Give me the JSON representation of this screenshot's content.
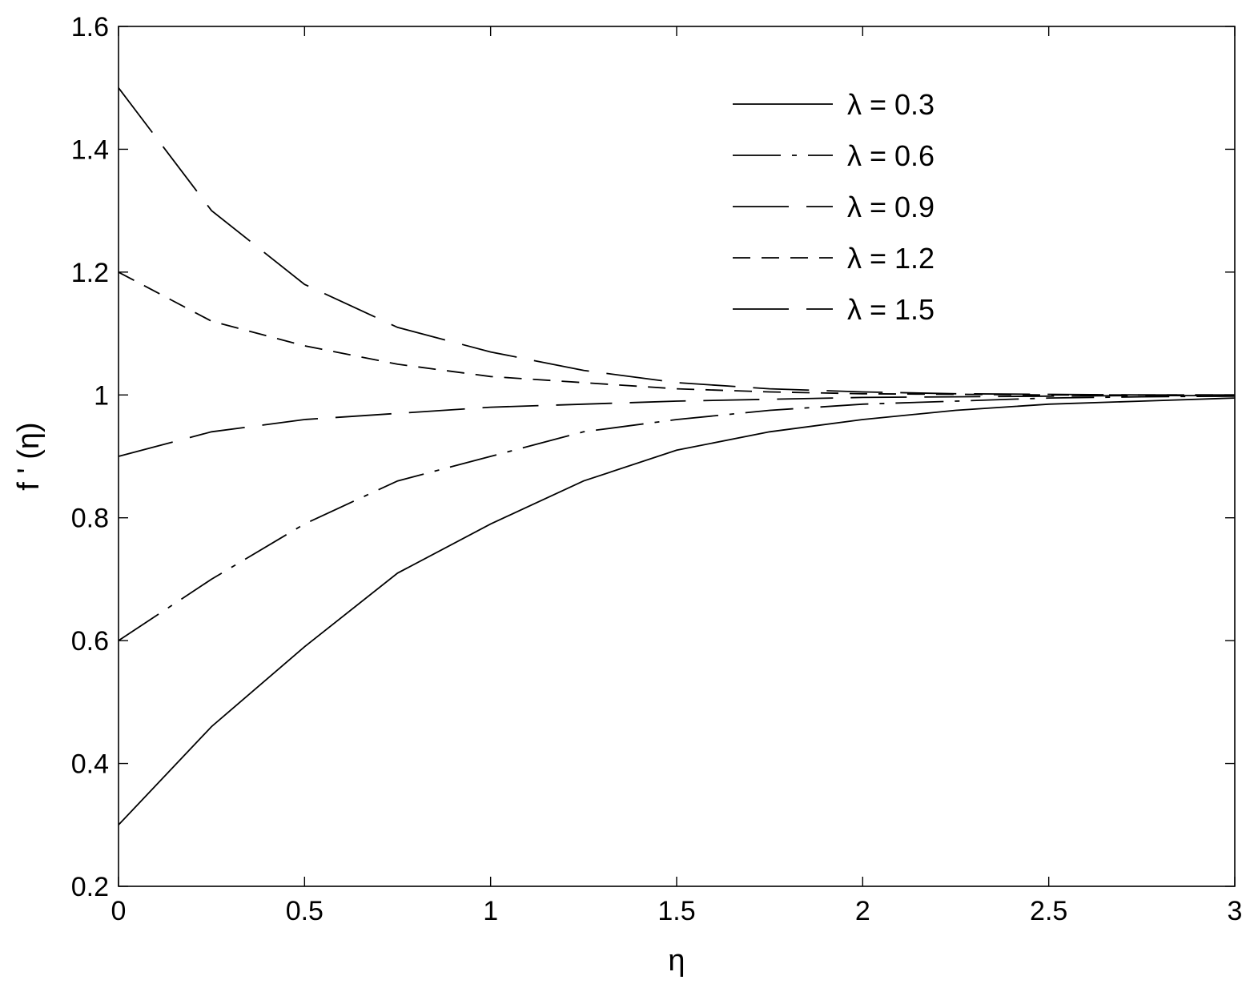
{
  "chart_data": {
    "type": "line",
    "title": "",
    "xlabel": "η",
    "ylabel": "f ' (η)",
    "xlim": [
      0,
      3
    ],
    "ylim": [
      0.2,
      1.6
    ],
    "xticks": [
      0,
      0.5,
      1,
      1.5,
      2,
      2.5,
      3
    ],
    "xtick_labels": [
      "0",
      "0.5",
      "1",
      "1.5",
      "2",
      "2.5",
      "3"
    ],
    "yticks": [
      0.2,
      0.4,
      0.6,
      0.8,
      1.0,
      1.2,
      1.4,
      1.6
    ],
    "ytick_labels": [
      "0.2",
      "0.4",
      "0.6",
      "0.8",
      "1",
      "1.2",
      "1.4",
      "1.6"
    ],
    "grid": false,
    "legend_position": "top-right",
    "line_color": "#000000",
    "x": [
      0,
      0.25,
      0.5,
      0.75,
      1.0,
      1.25,
      1.5,
      1.75,
      2.0,
      2.25,
      2.5,
      2.75,
      3.0
    ],
    "series": [
      {
        "name": "λ = 0.3",
        "dash": "solid",
        "values": [
          0.3,
          0.46,
          0.59,
          0.71,
          0.79,
          0.86,
          0.91,
          0.94,
          0.96,
          0.975,
          0.985,
          0.99,
          0.995
        ]
      },
      {
        "name": "λ = 0.6",
        "dash": "dashdot",
        "values": [
          0.6,
          0.7,
          0.79,
          0.86,
          0.9,
          0.94,
          0.96,
          0.975,
          0.985,
          0.99,
          0.995,
          0.997,
          0.998
        ]
      },
      {
        "name": "λ = 0.9",
        "dash": "longdash",
        "values": [
          0.9,
          0.94,
          0.96,
          0.97,
          0.98,
          0.985,
          0.99,
          0.993,
          0.996,
          0.997,
          0.998,
          0.999,
          0.999
        ]
      },
      {
        "name": "λ = 1.2",
        "dash": "dashed",
        "values": [
          1.2,
          1.12,
          1.08,
          1.05,
          1.03,
          1.02,
          1.01,
          1.005,
          1.002,
          1.001,
          1.0,
          1.0,
          1.0
        ]
      },
      {
        "name": "λ = 1.5",
        "dash": "longdash",
        "values": [
          1.5,
          1.3,
          1.18,
          1.11,
          1.07,
          1.04,
          1.02,
          1.01,
          1.005,
          1.002,
          1.001,
          1.0,
          1.0
        ]
      }
    ]
  }
}
